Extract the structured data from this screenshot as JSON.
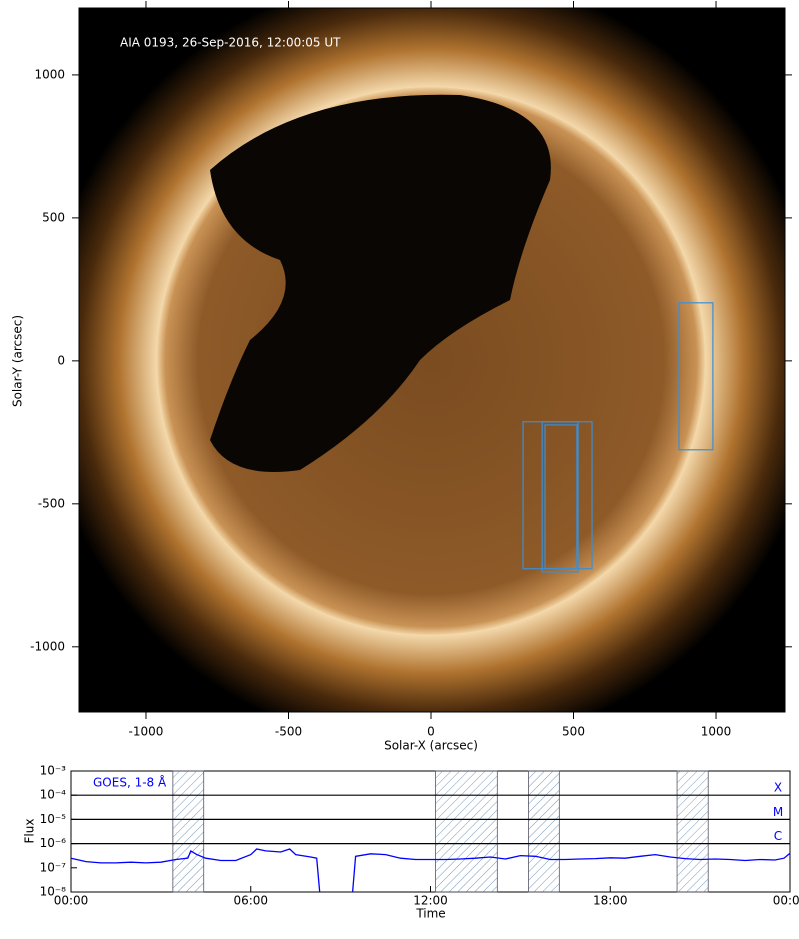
{
  "chart_data": [
    {
      "type": "image",
      "annotation": "AIA 0193, 26-Sep-2016, 12:00:05 UT",
      "xlabel": "Solar-X (arcsec)",
      "ylabel": "Solar-Y (arcsec)",
      "xlim": [
        -1235,
        1242
      ],
      "ylim": [
        -1228,
        1234
      ],
      "xticks": [
        -1000,
        -500,
        0,
        500,
        1000
      ],
      "yticks": [
        -1000,
        -500,
        0,
        500,
        1000
      ],
      "regions": [
        {
          "x": [
            870,
            989
          ],
          "y": [
            -311,
            203
          ],
          "color": "#3a8fd8"
        },
        {
          "x": [
            323,
            565
          ],
          "y": [
            -727,
            -213
          ],
          "color": "#3a8fd8"
        },
        {
          "x": [
            390,
            516
          ],
          "y": [
            -738,
            -213
          ],
          "color": "#3a8fd8"
        },
        {
          "x": [
            400,
            512
          ],
          "y": [
            -727,
            -224
          ],
          "color": "#3a8fd8"
        }
      ]
    },
    {
      "type": "line",
      "log_y": true,
      "xlabel": "Time",
      "ylabel": "Flux",
      "xlim": [
        0,
        24
      ],
      "xticks": [
        {
          "value": 0,
          "label": "00:00"
        },
        {
          "value": 6,
          "label": "06:00"
        },
        {
          "value": 12,
          "label": "12:00"
        },
        {
          "value": 18,
          "label": "18:00"
        },
        {
          "value": 24,
          "label": "00:00"
        }
      ],
      "ylim": [
        1e-08,
        0.001
      ],
      "yticks": [
        {
          "value": 1e-08,
          "label": "10⁻⁸"
        },
        {
          "value": 1e-07,
          "label": "10⁻⁷"
        },
        {
          "value": 1e-06,
          "label": "10⁻⁶"
        },
        {
          "value": 1e-05,
          "label": "10⁻⁵"
        },
        {
          "value": 0.0001,
          "label": "10⁻⁴"
        },
        {
          "value": 0.001,
          "label": "10⁻³"
        }
      ],
      "thresholds": [
        {
          "label": "X",
          "value": 0.0001
        },
        {
          "label": "M",
          "value": 1e-05
        },
        {
          "label": "C",
          "value": 1e-06
        }
      ],
      "spans": [
        [
          3.4,
          4.43
        ],
        [
          12.17,
          14.23
        ],
        [
          15.27,
          16.3
        ],
        [
          20.23,
          21.27
        ]
      ],
      "x": [
        0,
        0.5,
        1,
        1.5,
        2,
        2.5,
        3,
        3.5,
        3.9,
        4.0,
        4.2,
        4.5,
        5,
        5.5,
        6,
        6.2,
        6.5,
        7,
        7.3,
        7.5,
        8,
        8.2,
        8.3,
        8.8,
        9.4,
        9.5,
        10,
        10.5,
        11,
        11.5,
        12,
        12.5,
        13,
        13.5,
        14,
        14.5,
        15,
        15.5,
        16,
        16.5,
        17,
        17.5,
        18,
        18.5,
        19,
        19.5,
        20,
        20.5,
        21,
        21.5,
        22,
        22.5,
        23,
        23.5,
        23.8,
        24
      ],
      "series": [
        {
          "name": "GOES, 1-8 Å",
          "color": "#0000ff",
          "values": [
            2.5e-07,
            1.8e-07,
            1.6e-07,
            1.6e-07,
            1.7e-07,
            1.6e-07,
            1.7e-07,
            2.2e-07,
            2.5e-07,
            5e-07,
            3.5e-07,
            2.5e-07,
            2e-07,
            2e-07,
            3.5e-07,
            6e-07,
            5e-07,
            4.5e-07,
            6e-07,
            3.5e-07,
            2.8e-07,
            2.5e-07,
            1e-08,
            null,
            1e-08,
            3e-07,
            3.8e-07,
            3.5e-07,
            2.5e-07,
            2.2e-07,
            2.2e-07,
            2.2e-07,
            2.3e-07,
            2.5e-07,
            2.8e-07,
            2.3e-07,
            3.2e-07,
            3e-07,
            2.2e-07,
            2.2e-07,
            2.3e-07,
            2.4e-07,
            2.6e-07,
            2.5e-07,
            3e-07,
            3.5e-07,
            2.8e-07,
            2.4e-07,
            2.2e-07,
            2.3e-07,
            2.2e-07,
            2e-07,
            2.2e-07,
            2.1e-07,
            2.5e-07,
            4e-07
          ]
        }
      ]
    }
  ]
}
